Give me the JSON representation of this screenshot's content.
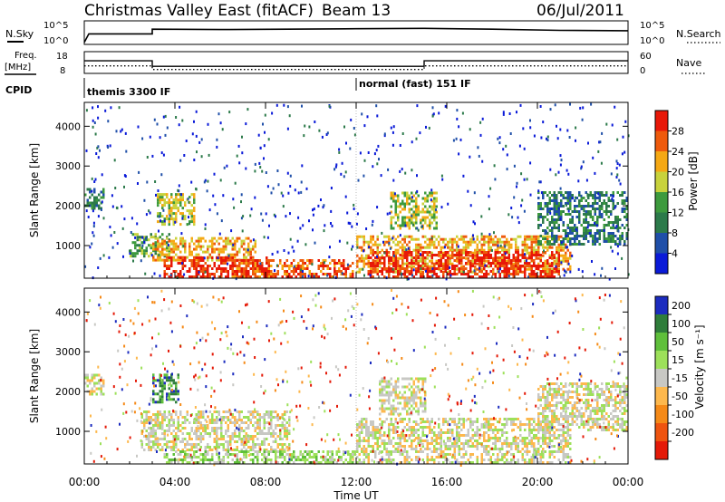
{
  "header": {
    "title": "Christmas Valley East (fitACF)",
    "beam": "Beam 13",
    "date": "06/Jul/2011"
  },
  "noise_panel": {
    "left_label": "N.Sky",
    "right_label": "N.Search",
    "ticks_left": [
      "10^5",
      "10^0"
    ],
    "ticks_right": [
      "10^5",
      "10^0"
    ]
  },
  "freq_panel": {
    "left_label_1": "Freq.",
    "left_label_2": "[MHz]",
    "right_label": "Nave",
    "ticks_left": [
      "18",
      "8"
    ],
    "ticks_right": [
      "60",
      "0"
    ],
    "freq_mhz": {
      "hours": [
        0,
        3.0,
        3.0,
        15.0,
        15.0,
        24
      ],
      "values": [
        14.2,
        14.2,
        10.4,
        10.4,
        14.2,
        14.2
      ]
    },
    "nave": {
      "hours": [
        0,
        3.0,
        3.0,
        15.0,
        15.0,
        24
      ],
      "values": [
        22,
        22,
        10,
        10,
        22,
        22
      ]
    }
  },
  "cpid_panel": {
    "label": "CPID",
    "segments": [
      {
        "text": "themis 3300 IF",
        "start_hour": 0
      },
      {
        "text": "normal (fast) 151 IF",
        "start_hour": 12
      }
    ]
  },
  "x_axis": {
    "label": "Time UT",
    "ticks": [
      "00:00",
      "04:00",
      "08:00",
      "12:00",
      "16:00",
      "20:00",
      "00:00"
    ],
    "hours": [
      0,
      4,
      8,
      12,
      16,
      20,
      24
    ]
  },
  "power_panel": {
    "ylabel": "Slant Range [km]",
    "yticks": [
      "1000",
      "2000",
      "3000",
      "4000"
    ],
    "yvalues": [
      1000,
      2000,
      3000,
      4000
    ],
    "ylim": [
      180,
      4600
    ],
    "colorbar_label": "Power [dB]",
    "colorbar_ticks": [
      "4",
      "8",
      "12",
      "16",
      "20",
      "24",
      "28"
    ],
    "colors": [
      "#0a1ad8",
      "#1f4fa8",
      "#2c7a4a",
      "#3d9a3d",
      "#c8d23c",
      "#f5a814",
      "#ee5a0c",
      "#e81808"
    ]
  },
  "velocity_panel": {
    "ylabel": "Slant Range [km]",
    "yticks": [
      "1000",
      "2000",
      "3000",
      "4000"
    ],
    "yvalues": [
      1000,
      2000,
      3000,
      4000
    ],
    "ylim": [
      180,
      4600
    ],
    "colorbar_label": "Velocity [m s⁻¹]",
    "colorbar_ticks": [
      "200",
      "100",
      "50",
      "15",
      "-15",
      "-50",
      "-100",
      "-200"
    ],
    "colors": [
      "#1c2cbf",
      "#2f7d3a",
      "#5fbf3b",
      "#9de05a",
      "#c8c8c4",
      "#fdb84d",
      "#f58a18",
      "#ee5410",
      "#e41a08"
    ]
  },
  "chart_data": [
    {
      "type": "line",
      "title": "Christmas Valley East (fitACF)",
      "ylabel": "N.Sky",
      "note": "noise level time series, log scale 10^0 – 10^5",
      "series": [
        {
          "name": "N.Sky",
          "hours": [
            0,
            0.2,
            3.0,
            3.0,
            6,
            9,
            12,
            15,
            18,
            21,
            24
          ],
          "log_values": [
            0.3,
            2.4,
            2.4,
            3.6,
            3.5,
            3.6,
            3.7,
            3.8,
            3.6,
            3.3,
            3.2
          ]
        }
      ]
    },
    {
      "type": "heatmap",
      "title": "Power [dB]",
      "xlabel": "Time UT",
      "ylabel": "Slant Range [km]",
      "xlim_hours": [
        0,
        24
      ],
      "ylim_km": [
        180,
        4600
      ],
      "regions": [
        {
          "t": [
            0.0,
            0.8
          ],
          "r": [
            1900,
            2400
          ],
          "level": 2
        },
        {
          "t": [
            2.0,
            3.8
          ],
          "r": [
            700,
            1300
          ],
          "level": 3
        },
        {
          "t": [
            3.2,
            4.8
          ],
          "r": [
            1500,
            2300
          ],
          "level": 4
        },
        {
          "t": [
            3.0,
            7.5
          ],
          "r": [
            600,
            1200
          ],
          "level": 5
        },
        {
          "t": [
            3.5,
            8.0
          ],
          "r": [
            180,
            700
          ],
          "level": 7
        },
        {
          "t": [
            6.5,
            11.8
          ],
          "r": [
            180,
            600
          ],
          "level": 6
        },
        {
          "t": [
            12.0,
            21.5
          ],
          "r": [
            300,
            1200
          ],
          "level": 5
        },
        {
          "t": [
            12.5,
            21.0
          ],
          "r": [
            180,
            800
          ],
          "level": 7
        },
        {
          "t": [
            13.5,
            15.5
          ],
          "r": [
            1400,
            2300
          ],
          "level": 4
        },
        {
          "t": [
            20.0,
            24.0
          ],
          "r": [
            1000,
            2300
          ],
          "level": 2
        }
      ]
    },
    {
      "type": "heatmap",
      "title": "Velocity [m s⁻¹]",
      "xlabel": "Time UT",
      "ylabel": "Slant Range [km]",
      "xlim_hours": [
        0,
        24
      ],
      "ylim_km": [
        180,
        4600
      ],
      "regions": [
        {
          "t": [
            0.0,
            0.8
          ],
          "r": [
            1900,
            2400
          ],
          "level": 4
        },
        {
          "t": [
            3.0,
            4.2
          ],
          "r": [
            1700,
            2400
          ],
          "level": 1
        },
        {
          "t": [
            2.5,
            9.0
          ],
          "r": [
            500,
            1500
          ],
          "level": 4
        },
        {
          "t": [
            3.5,
            12.0
          ],
          "r": [
            180,
            500
          ],
          "level": 3
        },
        {
          "t": [
            12.0,
            21.5
          ],
          "r": [
            180,
            1300
          ],
          "level": 4
        },
        {
          "t": [
            13.0,
            15.0
          ],
          "r": [
            1400,
            2300
          ],
          "level": 4
        },
        {
          "t": [
            20.0,
            24.0
          ],
          "r": [
            1000,
            2200
          ],
          "level": 4
        }
      ]
    }
  ]
}
